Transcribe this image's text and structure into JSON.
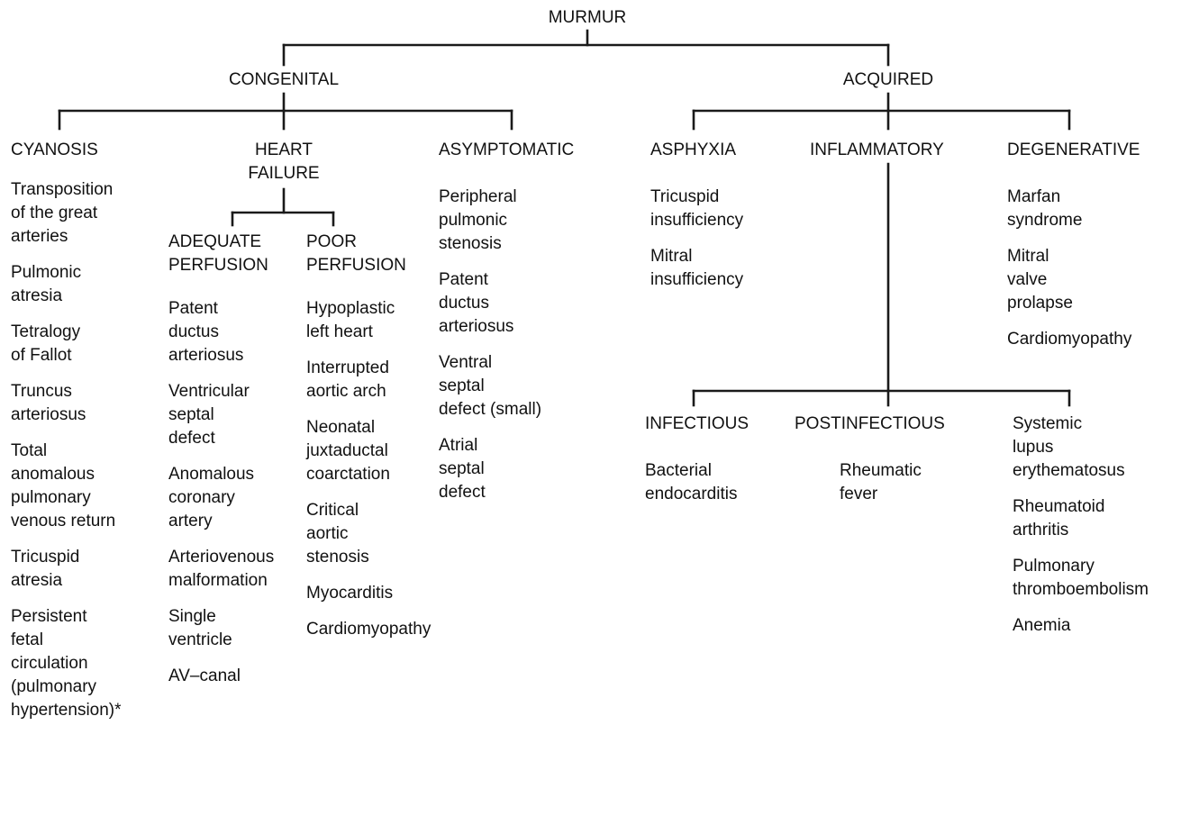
{
  "root": "MURMUR",
  "congenital": {
    "label": "CONGENITAL",
    "cyanosis": {
      "label": "CYANOSIS",
      "items": [
        "Transposition\nof the great\narteries",
        "Pulmonic\natresia",
        "Tetralogy\nof Fallot",
        "Truncus\narteriosus",
        "Total\nanomalous\npulmonary\nvenous return",
        "Tricuspid\natresia",
        "Persistent\nfetal\ncirculation\n(pulmonary\nhypertension)*"
      ]
    },
    "heart_failure": {
      "label": "HEART\nFAILURE",
      "adequate": {
        "label": "ADEQUATE\nPERFUSION",
        "items": [
          "Patent\nductus\narteriosus",
          "Ventricular\nseptal\ndefect",
          "Anomalous\ncoronary\nartery",
          "Arteriovenous\nmalformation",
          "Single\nventricle",
          "AV–canal"
        ]
      },
      "poor": {
        "label": "POOR\nPERFUSION",
        "items": [
          "Hypoplastic\nleft heart",
          "Interrupted\naortic arch",
          "Neonatal\njuxtaductal\ncoarctation",
          "Critical\naortic\nstenosis",
          "Myocarditis",
          "Cardiomyopathy"
        ]
      }
    },
    "asymptomatic": {
      "label": "ASYMPTOMATIC",
      "items": [
        "Peripheral\npulmonic\nstenosis",
        "Patent\nductus\narteriosus",
        "Ventral\nseptal\ndefect (small)",
        "Atrial\nseptal\ndefect"
      ]
    }
  },
  "acquired": {
    "label": "ACQUIRED",
    "asphyxia": {
      "label": "ASPHYXIA",
      "items": [
        "Tricuspid\ninsufficiency",
        "Mitral\ninsufficiency"
      ]
    },
    "inflammatory": {
      "label": "INFLAMMATORY",
      "infectious": {
        "label": "INFECTIOUS",
        "items": [
          "Bacterial\nendocarditis"
        ]
      },
      "postinfectious": {
        "label": "POSTINFECTIOUS",
        "items": [
          "Rheumatic\nfever"
        ]
      },
      "systemic": {
        "items": [
          "Systemic\nlupus\nerythematosus",
          "Rheumatoid\narthritis",
          "Pulmonary\nthromboembolism",
          "Anemia"
        ]
      }
    },
    "degenerative": {
      "label": "DEGENERATIVE",
      "items": [
        "Marfan\nsyndrome",
        "Mitral\nvalve\nprolapse",
        "Cardiomyopathy"
      ]
    }
  }
}
